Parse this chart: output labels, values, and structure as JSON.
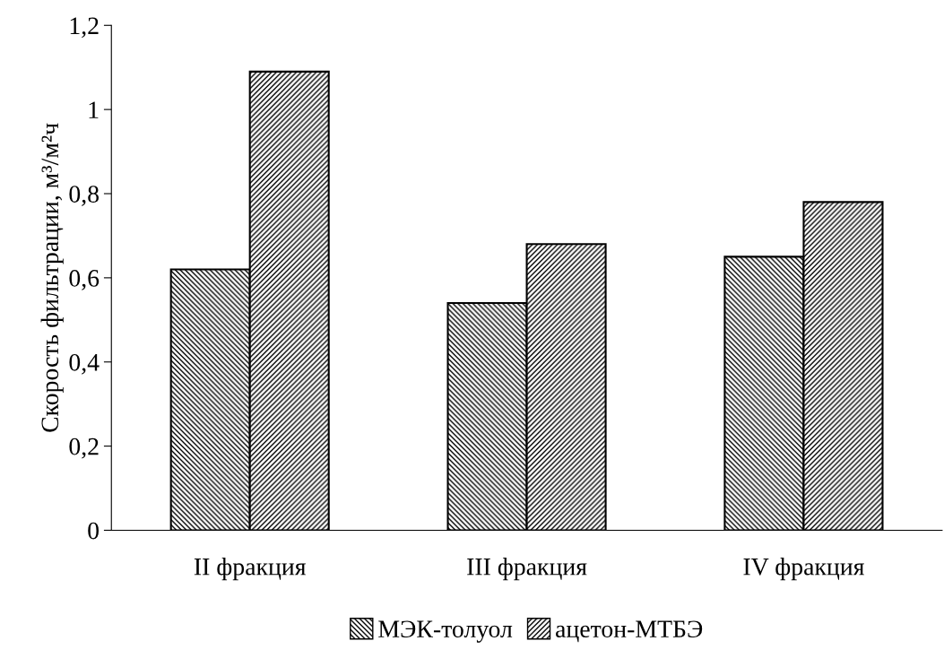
{
  "chart_data": {
    "type": "bar",
    "ylabel": "Скорость фильтрации, м³/м²ч",
    "categories": [
      "II фракция",
      "III фракция",
      "IV фракция"
    ],
    "series": [
      {
        "name": "МЭК-толуол",
        "color": "#000000",
        "values": [
          0.62,
          0.54,
          0.65
        ]
      },
      {
        "name": "ацетон-МТБЭ",
        "color": "#000000",
        "values": [
          1.09,
          0.68,
          0.78
        ]
      }
    ],
    "ylim": [
      0,
      1.2
    ],
    "yticks": [
      0,
      {
        "value": 0.2,
        "label": "0,2"
      },
      {
        "value": 0.4,
        "label": "0,4"
      },
      {
        "value": 0.6,
        "label": "0,6"
      },
      {
        "value": 0.8,
        "label": "0,8"
      },
      1,
      {
        "value": 1.2,
        "label": "1,2"
      }
    ],
    "grid": false,
    "legend": "bottom"
  }
}
